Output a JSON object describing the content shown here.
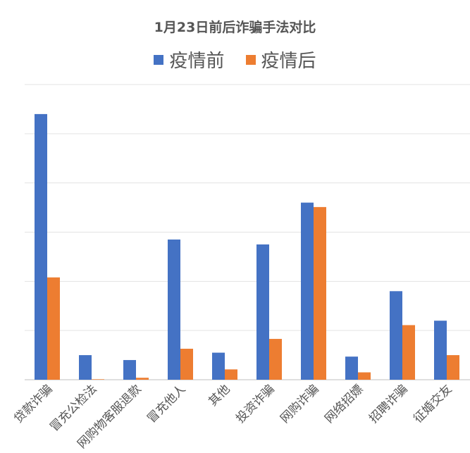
{
  "chart_data": {
    "type": "bar",
    "title": "1月23日前后诈骗手法对比",
    "categories": [
      "贷款诈骗",
      "冒充公检法",
      "网购物客服退款",
      "冒充他人",
      "其他",
      "投资诈骗",
      "网购诈骗",
      "网络招嫖",
      "招聘诈骗",
      "征婚交友"
    ],
    "series": [
      {
        "name": "疫情前",
        "color": "#4472c4",
        "values": [
          54,
          5,
          4,
          28.5,
          5.5,
          27.5,
          36,
          4.7,
          18,
          12
        ]
      },
      {
        "name": "疫情后",
        "color": "#ed7d31",
        "values": [
          20.8,
          0.1,
          0.4,
          6.3,
          2.1,
          8.3,
          35.1,
          1.5,
          11.1,
          5
        ]
      }
    ],
    "ylim": [
      0,
      60
    ],
    "grid": true,
    "legend_position": "top-center",
    "y_tick_labels_visible": false
  }
}
